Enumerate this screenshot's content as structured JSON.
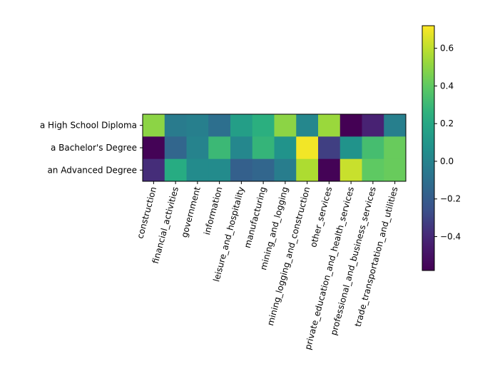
{
  "chart_data": {
    "type": "heatmap",
    "title": "",
    "xlabel": "",
    "ylabel": "",
    "rows": [
      "a High School Diploma",
      "a Bachelor's Degree",
      "an Advanced Degree"
    ],
    "columns": [
      "construction",
      "financial_activities",
      "government",
      "information",
      "leisure_and_hospitality",
      "manufacturing",
      "mining_and_logging",
      "mining_logging_and_construction",
      "other_services",
      "private_education_and_health_services",
      "professional_and_business_services",
      "trade_transportation_and_utilities"
    ],
    "values": [
      [
        0.5,
        -0.04,
        -0.02,
        -0.1,
        0.15,
        0.25,
        0.5,
        0.02,
        0.53,
        -0.58,
        -0.42,
        -0.02
      ],
      [
        -0.57,
        -0.15,
        0.0,
        0.3,
        0.02,
        0.28,
        0.08,
        0.7,
        -0.32,
        0.08,
        0.33,
        0.42
      ],
      [
        -0.38,
        0.23,
        0.04,
        0.04,
        -0.18,
        -0.15,
        -0.03,
        0.57,
        -0.57,
        0.62,
        0.4,
        0.42
      ]
    ],
    "colorbar": {
      "vmin": -0.58,
      "vmax": 0.72,
      "colormap": "viridis",
      "ticks": [
        "−0.4",
        "−0.2",
        "0.0",
        "0.2",
        "0.4",
        "0.6"
      ],
      "tick_values": [
        -0.4,
        -0.2,
        0.0,
        0.2,
        0.4,
        0.6
      ]
    }
  }
}
